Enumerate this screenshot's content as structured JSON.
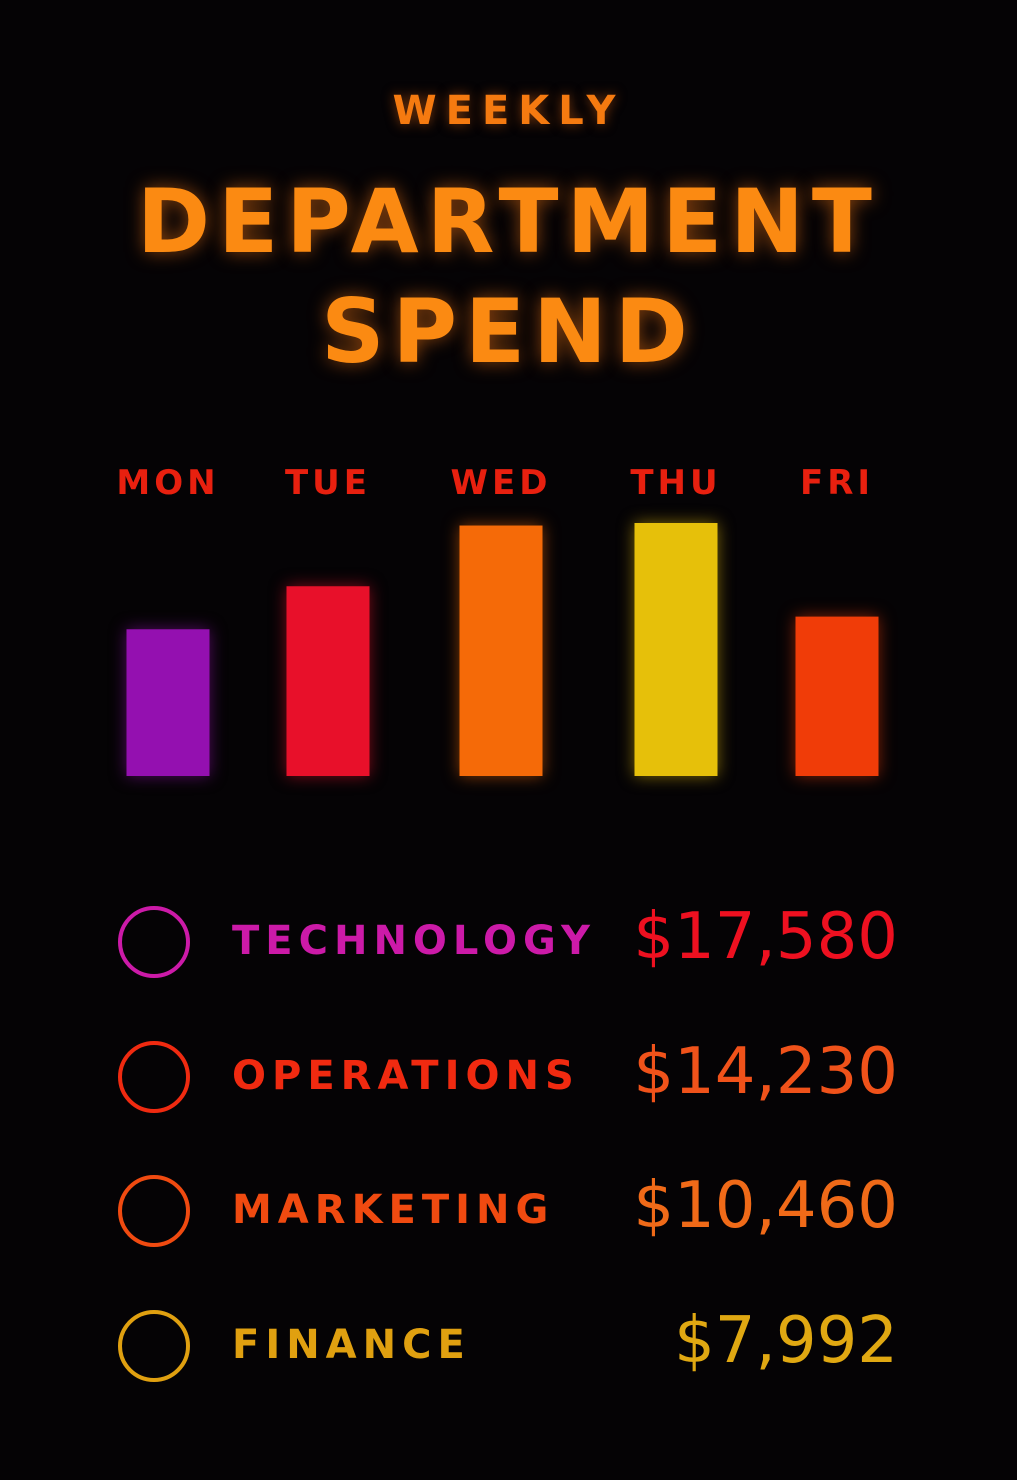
{
  "header": {
    "subtitle": "WEEKLY",
    "title_line1": "DEPARTMENT",
    "title_line2": "SPEND"
  },
  "chart_data": {
    "type": "bar",
    "categories": [
      "MON",
      "TUE",
      "WED",
      "THU",
      "FRI"
    ],
    "values": [
      0.58,
      0.75,
      0.99,
      1.0,
      0.63
    ],
    "value_note_units": "relative to tallest bar",
    "colors": [
      "#9410b0",
      "#e8102a",
      "#f56a08",
      "#e6c00a",
      "#f03c08"
    ],
    "grid": false
  },
  "legend": [
    {
      "name": "TECHNOLOGY",
      "amount": "$17,580",
      "color": "#cc1aa8",
      "amount_color": "#ee1020"
    },
    {
      "name": "OPERATIONS",
      "amount": "$14,230",
      "color": "#f02a10",
      "amount_color": "#f0521a"
    },
    {
      "name": "MARKETING",
      "amount": "$10,460",
      "color": "#f04a10",
      "amount_color": "#f06a18"
    },
    {
      "name": "FINANCE",
      "amount": "$7,992",
      "color": "#e0a010",
      "amount_color": "#e0a812"
    }
  ]
}
